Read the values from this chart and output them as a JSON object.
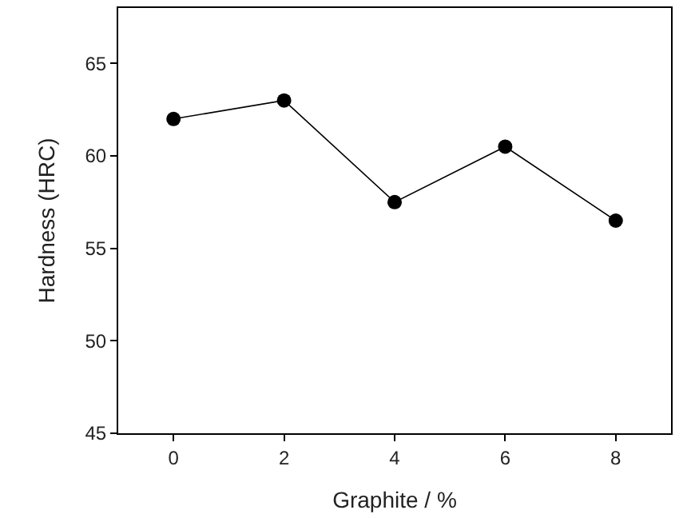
{
  "chart_data": {
    "type": "line",
    "xlabel": "Graphite / %",
    "ylabel": "Hardness (HRC)",
    "x": [
      0,
      2,
      4,
      6,
      8
    ],
    "series": [
      {
        "color": "#000000",
        "values": [
          62,
          63,
          57.5,
          60.5,
          56.5
        ]
      }
    ],
    "xlim": [
      -1,
      9
    ],
    "xticks": [
      0,
      2,
      4,
      6,
      8
    ],
    "ylim": [
      45,
      68
    ],
    "yticks": [
      45,
      50,
      55,
      60,
      65
    ],
    "marker": "circle",
    "line_style": "solid"
  }
}
